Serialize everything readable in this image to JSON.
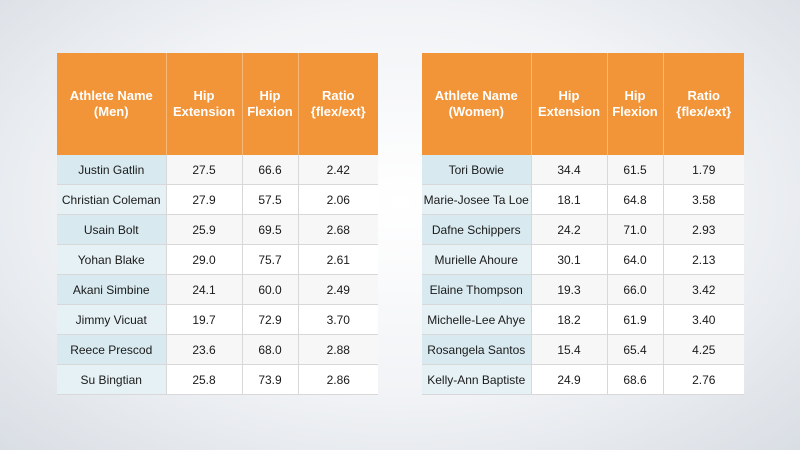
{
  "men": {
    "headers": [
      "Athlete Name\n(Men)",
      "Hip\nExtension",
      "Hip\nFlexion",
      "Ratio\n{flex/ext}"
    ],
    "rows": [
      [
        "Justin Gatlin",
        "27.5",
        "66.6",
        "2.42"
      ],
      [
        "Christian Coleman",
        "27.9",
        "57.5",
        "2.06"
      ],
      [
        "Usain Bolt",
        "25.9",
        "69.5",
        "2.68"
      ],
      [
        "Yohan Blake",
        "29.0",
        "75.7",
        "2.61"
      ],
      [
        "Akani Simbine",
        "24.1",
        "60.0",
        "2.49"
      ],
      [
        "Jimmy Vicuat",
        "19.7",
        "72.9",
        "3.70"
      ],
      [
        "Reece Prescod",
        "23.6",
        "68.0",
        "2.88"
      ],
      [
        "Su Bingtian",
        "25.8",
        "73.9",
        "2.86"
      ]
    ]
  },
  "women": {
    "headers": [
      "Athlete Name\n(Women)",
      "Hip\nExtension",
      "Hip\nFlexion",
      "Ratio\n{flex/ext}"
    ],
    "rows": [
      [
        "Tori Bowie",
        "34.4",
        "61.5",
        "1.79"
      ],
      [
        "Marie-Josee Ta Loe",
        "18.1",
        "64.8",
        "3.58"
      ],
      [
        "Dafne Schippers",
        "24.2",
        "71.0",
        "2.93"
      ],
      [
        "Murielle Ahoure",
        "30.1",
        "64.0",
        "2.13"
      ],
      [
        "Elaine Thompson",
        "19.3",
        "66.0",
        "3.42"
      ],
      [
        "Michelle-Lee Ahye",
        "18.2",
        "61.9",
        "3.40"
      ],
      [
        "Rosangela Santos",
        "15.4",
        "65.4",
        "4.25"
      ],
      [
        "Kelly-Ann Baptiste",
        "24.9",
        "68.6",
        "2.76"
      ]
    ]
  },
  "colors": {
    "header_bg": "#f29438",
    "name_cell_bg": "#d8eaf0"
  }
}
